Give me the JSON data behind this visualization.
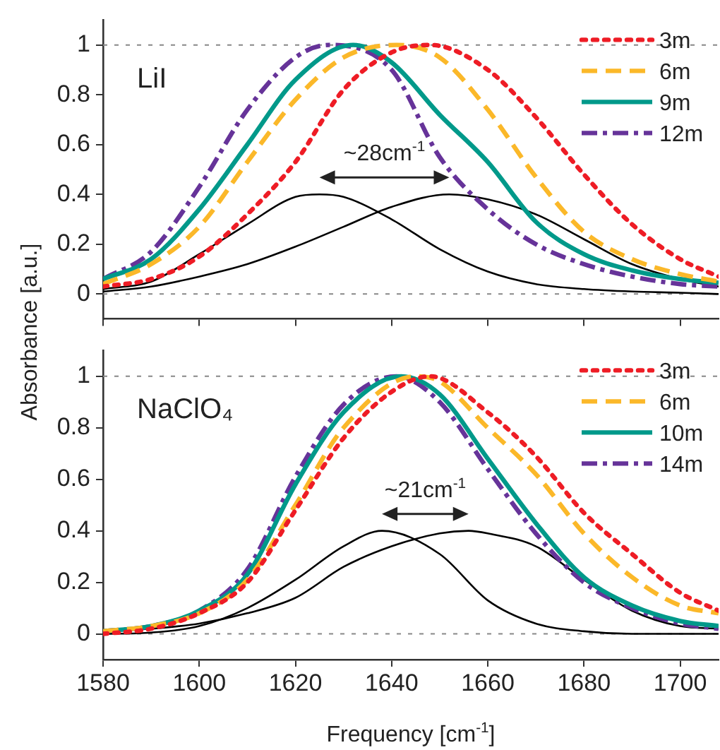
{
  "chart_data": [
    {
      "type": "line",
      "title": "LiI",
      "ylabel": "Absorbance [a.u.]",
      "xlim": [
        1580,
        1708
      ],
      "ylim": [
        -0.1,
        1.1
      ],
      "xticks": [
        1580,
        1600,
        1620,
        1640,
        1660,
        1680,
        1700
      ],
      "yticks": [
        0,
        0.2,
        0.4,
        0.6,
        0.8,
        1
      ],
      "tick_labels": "y",
      "legend": "top right",
      "grid": false,
      "marker": "none",
      "annotations": [
        "~28cm$^{-1}$"
      ],
      "ref_lines": [
        {
          "axis": "y",
          "value": 0,
          "color": "#888888",
          "line_style": "dotted"
        },
        {
          "axis": "y",
          "value": 1,
          "color": "#888888",
          "line_style": "dotted"
        }
      ],
      "series": [
        {
          "name": "3m",
          "color": "#ee1c25",
          "line_style": "dotted",
          "x": [
            1580,
            1590,
            1600,
            1610,
            1620,
            1630,
            1640,
            1648,
            1660,
            1670,
            1680,
            1690,
            1700,
            1708
          ],
          "values": [
            0.03,
            0.06,
            0.15,
            0.32,
            0.53,
            0.82,
            0.97,
            1,
            0.9,
            0.71,
            0.48,
            0.28,
            0.14,
            0.07
          ]
        },
        {
          "name": "6m",
          "color": "#fbb829",
          "line_style": "dashed",
          "x": [
            1580,
            1590,
            1600,
            1610,
            1620,
            1630,
            1641,
            1650,
            1660,
            1670,
            1680,
            1690,
            1700,
            1708
          ],
          "values": [
            0.04,
            0.12,
            0.27,
            0.53,
            0.78,
            0.95,
            1,
            0.95,
            0.74,
            0.47,
            0.25,
            0.14,
            0.08,
            0.05
          ]
        },
        {
          "name": "9m",
          "color": "#00998a",
          "line_style": "solid",
          "x": [
            1580,
            1590,
            1600,
            1610,
            1620,
            1632,
            1640,
            1650,
            1660,
            1670,
            1680,
            1690,
            1700,
            1708
          ],
          "values": [
            0.06,
            0.14,
            0.34,
            0.6,
            0.86,
            1,
            0.93,
            0.72,
            0.53,
            0.29,
            0.16,
            0.095,
            0.06,
            0.045
          ]
        },
        {
          "name": "12m",
          "color": "#663399",
          "line_style": "dashdot",
          "x": [
            1580,
            1590,
            1600,
            1610,
            1620,
            1627,
            1640,
            1650,
            1660,
            1670,
            1680,
            1690,
            1700,
            1708
          ],
          "values": [
            0.06,
            0.17,
            0.43,
            0.74,
            0.95,
            1,
            0.9,
            0.55,
            0.34,
            0.2,
            0.12,
            0.07,
            0.04,
            0.03
          ]
        },
        {
          "color": "#000000",
          "line_style": "solid",
          "x": [
            1580,
            1590,
            1600,
            1610,
            1620,
            1625,
            1630,
            1640,
            1650,
            1660,
            1670,
            1680,
            1690,
            1700,
            1708
          ],
          "values": [
            0.02,
            0.05,
            0.16,
            0.28,
            0.39,
            0.4,
            0.39,
            0.3,
            0.18,
            0.09,
            0.04,
            0.02,
            0.01,
            0.005,
            0
          ]
        },
        {
          "color": "#000000",
          "line_style": "solid",
          "x": [
            1580,
            1590,
            1600,
            1610,
            1620,
            1630,
            1640,
            1652,
            1660,
            1670,
            1680,
            1690,
            1700,
            1708
          ],
          "values": [
            0.01,
            0.03,
            0.07,
            0.12,
            0.19,
            0.27,
            0.35,
            0.4,
            0.38,
            0.32,
            0.22,
            0.12,
            0.06,
            0.03
          ]
        }
      ]
    },
    {
      "type": "line",
      "title": "NaClO₄",
      "xlabel": "Frequency [cm$^{-1}$]",
      "xlim": [
        1580,
        1708
      ],
      "ylim": [
        -0.1,
        1.1
      ],
      "xticks": [
        1580,
        1600,
        1620,
        1640,
        1660,
        1680,
        1700
      ],
      "yticks": [
        0,
        0.2,
        0.4,
        0.6,
        0.8,
        1
      ],
      "legend": "top right",
      "grid": false,
      "marker": "none",
      "annotations": [
        "~21cm$^{-1}$"
      ],
      "ref_lines": [
        {
          "axis": "y",
          "value": 0,
          "color": "#888888",
          "line_style": "dotted"
        },
        {
          "axis": "y",
          "value": 1,
          "color": "#888888",
          "line_style": "dotted"
        }
      ],
      "series": [
        {
          "name": "3m",
          "color": "#ee1c25",
          "line_style": "dotted",
          "x": [
            1580,
            1590,
            1600,
            1610,
            1620,
            1630,
            1640,
            1648,
            1660,
            1670,
            1680,
            1690,
            1700,
            1708
          ],
          "values": [
            0,
            0.02,
            0.08,
            0.2,
            0.48,
            0.76,
            0.94,
            1,
            0.86,
            0.69,
            0.47,
            0.31,
            0.16,
            0.09
          ]
        },
        {
          "name": "6m",
          "color": "#fbb829",
          "line_style": "dashed",
          "x": [
            1580,
            1590,
            1600,
            1610,
            1620,
            1630,
            1645,
            1650,
            1660,
            1670,
            1680,
            1690,
            1700,
            1708
          ],
          "values": [
            0.01,
            0.03,
            0.08,
            0.21,
            0.5,
            0.8,
            1,
            0.98,
            0.8,
            0.62,
            0.39,
            0.22,
            0.11,
            0.08
          ]
        },
        {
          "name": "10m",
          "color": "#00998a",
          "line_style": "solid",
          "x": [
            1580,
            1590,
            1600,
            1610,
            1620,
            1630,
            1642,
            1650,
            1660,
            1670,
            1680,
            1690,
            1700,
            1708
          ],
          "values": [
            0.01,
            0.03,
            0.09,
            0.23,
            0.58,
            0.86,
            1,
            0.93,
            0.68,
            0.43,
            0.22,
            0.11,
            0.05,
            0.03
          ]
        },
        {
          "name": "14m",
          "color": "#663399",
          "line_style": "dashdot",
          "x": [
            1580,
            1590,
            1600,
            1610,
            1620,
            1630,
            1641,
            1650,
            1660,
            1670,
            1680,
            1690,
            1700,
            1708
          ],
          "values": [
            0.01,
            0.03,
            0.09,
            0.25,
            0.61,
            0.89,
            1,
            0.9,
            0.64,
            0.39,
            0.2,
            0.1,
            0.04,
            0.02
          ]
        },
        {
          "color": "#000000",
          "line_style": "solid",
          "x": [
            1580,
            1590,
            1600,
            1610,
            1620,
            1630,
            1638,
            1650,
            1660,
            1670,
            1680,
            1690,
            1700,
            1708
          ],
          "values": [
            0,
            0.005,
            0.03,
            0.1,
            0.21,
            0.34,
            0.4,
            0.31,
            0.13,
            0.04,
            0.01,
            0,
            0,
            0
          ]
        },
        {
          "color": "#000000",
          "line_style": "solid",
          "x": [
            1580,
            1590,
            1600,
            1610,
            1620,
            1630,
            1640,
            1650,
            1656,
            1660,
            1670,
            1680,
            1690,
            1700,
            1708
          ],
          "values": [
            0.01,
            0.02,
            0.04,
            0.08,
            0.14,
            0.26,
            0.34,
            0.39,
            0.4,
            0.39,
            0.34,
            0.21,
            0.09,
            0.03,
            0.02
          ]
        }
      ]
    }
  ]
}
